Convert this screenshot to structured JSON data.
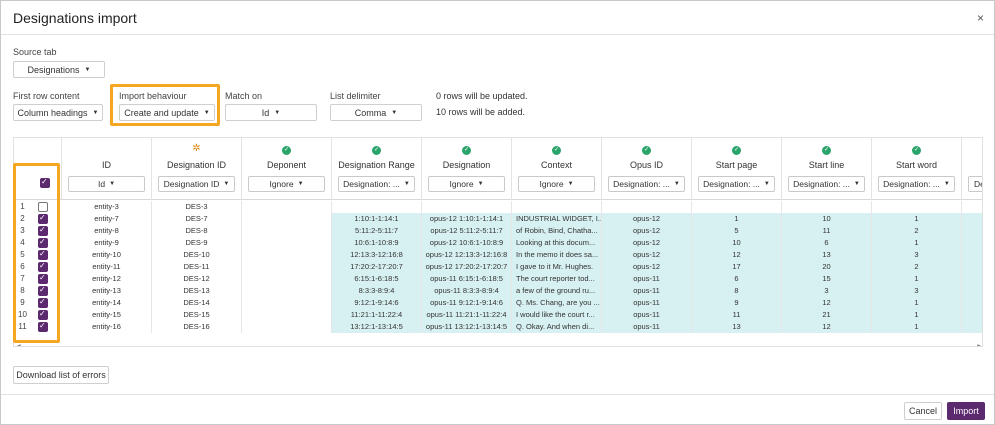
{
  "dialog": {
    "title": "Designations import",
    "close_glyph": "×"
  },
  "source_tab": {
    "label": "Source tab",
    "value": "Designations"
  },
  "first_row": {
    "label": "First row content",
    "value": "Column headings"
  },
  "import_behaviour": {
    "label": "Import behaviour",
    "value": "Create and update"
  },
  "match_on": {
    "label": "Match on",
    "value": "Id"
  },
  "list_delimiter": {
    "label": "List delimiter",
    "value": "Comma"
  },
  "summary": {
    "updated": "0 rows will be updated.",
    "added": "10 rows will be added."
  },
  "highlight_color": "#f5a623",
  "accent_color": "#5b2a6e",
  "columns": [
    {
      "name": "ID",
      "mapping": "Id",
      "status": "none"
    },
    {
      "name": "Designation ID",
      "mapping": "Designation ID",
      "status": "warn"
    },
    {
      "name": "Deponent",
      "mapping": "Ignore",
      "status": "ok"
    },
    {
      "name": "Designation Range",
      "mapping": "Designation: ...",
      "status": "ok"
    },
    {
      "name": "Designation",
      "mapping": "Ignore",
      "status": "ok"
    },
    {
      "name": "Context",
      "mapping": "Ignore",
      "status": "ok"
    },
    {
      "name": "Opus ID",
      "mapping": "Designation: ...",
      "status": "ok"
    },
    {
      "name": "Start page",
      "mapping": "Designation: ...",
      "status": "ok"
    },
    {
      "name": "Start line",
      "mapping": "Designation: ...",
      "status": "ok"
    },
    {
      "name": "Start word",
      "mapping": "Designation: ...",
      "status": "ok"
    },
    {
      "name": "",
      "mapping": "Des",
      "status": "none"
    }
  ],
  "rows": [
    {
      "num": "1",
      "checked": false,
      "cells": [
        "entity-3",
        "DES-3",
        "",
        "",
        "",
        "",
        "",
        "",
        "",
        "",
        ""
      ]
    },
    {
      "num": "2",
      "checked": true,
      "cells": [
        "entity-7",
        "DES-7",
        "",
        "1:10:1-1:14:1",
        "opus-12 1:10:1-1:14:1",
        "INDUSTRIAL WIDGET, I...",
        "opus-12",
        "1",
        "10",
        "1",
        ""
      ]
    },
    {
      "num": "3",
      "checked": true,
      "cells": [
        "entity-8",
        "DES-8",
        "",
        "5:11:2-5:11:7",
        "opus-12 5:11:2-5:11:7",
        "of Robin, Bind, Chatha...",
        "opus-12",
        "5",
        "11",
        "2",
        ""
      ]
    },
    {
      "num": "4",
      "checked": true,
      "cells": [
        "entity-9",
        "DES-9",
        "",
        "10:6:1-10:8:9",
        "opus-12 10:6:1-10:8:9",
        "Looking at this docum...",
        "opus-12",
        "10",
        "6",
        "1",
        ""
      ]
    },
    {
      "num": "5",
      "checked": true,
      "cells": [
        "entity-10",
        "DES-10",
        "",
        "12:13:3-12:16:8",
        "opus-12 12:13:3-12:16:8",
        "In the memo it does sa...",
        "opus-12",
        "12",
        "13",
        "3",
        ""
      ]
    },
    {
      "num": "6",
      "checked": true,
      "cells": [
        "entity-11",
        "DES-11",
        "",
        "17:20:2-17:20:7",
        "opus-12 17:20:2-17:20:7",
        "I gave to it Mr. Hughes.",
        "opus-12",
        "17",
        "20",
        "2",
        ""
      ]
    },
    {
      "num": "7",
      "checked": true,
      "cells": [
        "entity-12",
        "DES-12",
        "",
        "6:15:1-6:18:5",
        "opus-11 6:15:1-6:18:5",
        "The court reporter tod...",
        "opus-11",
        "6",
        "15",
        "1",
        ""
      ]
    },
    {
      "num": "8",
      "checked": true,
      "cells": [
        "entity-13",
        "DES-13",
        "",
        "8:3:3-8:9:4",
        "opus-11 8:3:3-8:9:4",
        "a few of the ground ru...",
        "opus-11",
        "8",
        "3",
        "3",
        ""
      ]
    },
    {
      "num": "9",
      "checked": true,
      "cells": [
        "entity-14",
        "DES-14",
        "",
        "9:12:1-9:14:6",
        "opus-11 9:12:1-9:14:6",
        "Q. Ms. Chang, are you ...",
        "opus-11",
        "9",
        "12",
        "1",
        ""
      ]
    },
    {
      "num": "10",
      "checked": true,
      "cells": [
        "entity-15",
        "DES-15",
        "",
        "11:21:1-11:22:4",
        "opus-11 11:21:1-11:22:4",
        "I would like the court r...",
        "opus-11",
        "11",
        "21",
        "1",
        ""
      ]
    },
    {
      "num": "11",
      "checked": true,
      "cells": [
        "entity-16",
        "DES-16",
        "",
        "13:12:1-13:14:5",
        "opus-11 13:12:1-13:14:5",
        "Q. Okay. And when di...",
        "opus-11",
        "13",
        "12",
        "1",
        ""
      ]
    }
  ],
  "buttons": {
    "download_errors": "Download list of errors",
    "cancel": "Cancel",
    "import": "Import"
  }
}
